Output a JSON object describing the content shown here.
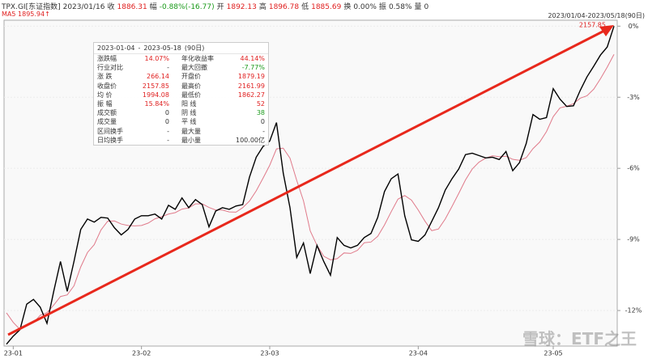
{
  "header": {
    "symbol": "TPX.GI[东证指数]",
    "date": "2023/01/16",
    "items": [
      {
        "label": "收",
        "value": "1886.31",
        "color": "red"
      },
      {
        "label": "幅",
        "value": "-0.88%(-16.77)",
        "color": "grn"
      },
      {
        "label": "开",
        "value": "1892.13",
        "color": "red"
      },
      {
        "label": "高",
        "value": "1896.78",
        "color": "red"
      },
      {
        "label": "低",
        "value": "1885.69",
        "color": "red"
      },
      {
        "label": "换",
        "value": "0.00%",
        "color": ""
      },
      {
        "label": "振",
        "value": "0.58%",
        "color": ""
      },
      {
        "label": "量",
        "value": "0",
        "color": ""
      }
    ]
  },
  "ma": {
    "name": "MA5",
    "value": "1895.94↑"
  },
  "range": "2023/01/04-2023/05/18(90日)",
  "panel": {
    "start": "2023-01-04",
    "sep": "-",
    "end": "2023-05-18",
    "days": "(90日)",
    "rows": [
      [
        "涨跌幅",
        "14.07%",
        "年化收益率",
        "44.14%"
      ],
      [
        "行业对比",
        "-",
        "最大回撤",
        "-7.77%"
      ],
      [
        "涨 跌",
        "266.14",
        "开盘价",
        "1879.19"
      ],
      [
        "收盘价",
        "2157.85",
        "最高价",
        "2161.99"
      ],
      [
        "均 价",
        "1994.08",
        "最低价",
        "1862.27"
      ],
      [
        "振 幅",
        "15.84%",
        "阳 线",
        "52"
      ],
      [
        "成交额",
        "0",
        "阴 线",
        "38"
      ],
      [
        "成交量",
        "0",
        "平 线",
        "0"
      ],
      [
        "区间换手",
        "-",
        "最大量",
        "-"
      ],
      [
        "日均换手",
        "-",
        "最小量",
        "100.00亿"
      ]
    ],
    "colors": [
      [
        "red",
        "red"
      ],
      [
        "",
        "grn"
      ],
      [
        "red",
        "red"
      ],
      [
        "red",
        "red"
      ],
      [
        "red",
        "red"
      ],
      [
        "red",
        "red"
      ],
      [
        "",
        "grn"
      ],
      [
        "",
        ""
      ],
      [
        "",
        ""
      ],
      [
        "",
        ""
      ]
    ]
  },
  "watermark": "雪球：ETF之王",
  "chart_data": {
    "type": "line",
    "annotation": "2157.85",
    "x": [
      0,
      1,
      2,
      3,
      4,
      5,
      6,
      7,
      8,
      9,
      10,
      11,
      12,
      13,
      14,
      15,
      16,
      17,
      18,
      19,
      20,
      21,
      22,
      23,
      24,
      25,
      26,
      27,
      28,
      29,
      30,
      31,
      32,
      33,
      34,
      35,
      36,
      37,
      38,
      39,
      40,
      41,
      42,
      43,
      44,
      45,
      46,
      47,
      48,
      49,
      50,
      51,
      52,
      53,
      54,
      55,
      56,
      57,
      58,
      59,
      60,
      61,
      62,
      63,
      64,
      65,
      66,
      67,
      68,
      69,
      70,
      71,
      72,
      73,
      74,
      75,
      76,
      77,
      78,
      79,
      80,
      81,
      82,
      83,
      84,
      85,
      86,
      87,
      88,
      89,
      90
    ],
    "series": [
      {
        "name": "TPX.GI",
        "color": "#000000",
        "values": [
          -13.42,
          -13.08,
          -12.81,
          -11.73,
          -11.53,
          -11.86,
          -12.54,
          -11.19,
          -9.93,
          -11.19,
          -9.93,
          -8.58,
          -8.14,
          -8.27,
          -8.07,
          -8.1,
          -8.51,
          -8.81,
          -8.58,
          -8.14,
          -8.0,
          -8.0,
          -7.93,
          -8.14,
          -7.56,
          -7.73,
          -7.25,
          -7.66,
          -7.32,
          -7.53,
          -8.47,
          -7.8,
          -7.66,
          -7.73,
          -7.59,
          -7.53,
          -6.37,
          -5.53,
          -5.08,
          -4.85,
          -4.07,
          -6.2,
          -7.66,
          -9.76,
          -9.15,
          -10.44,
          -9.25,
          -9.93,
          -10.51,
          -8.92,
          -9.25,
          -9.36,
          -9.25,
          -8.92,
          -8.75,
          -8.07,
          -6.98,
          -6.44,
          -6.24,
          -8.0,
          -9.02,
          -9.08,
          -8.81,
          -8.24,
          -7.66,
          -6.92,
          -6.44,
          -6.03,
          -5.42,
          -5.36,
          -5.46,
          -5.56,
          -5.53,
          -5.63,
          -5.29,
          -6.1,
          -5.76,
          -4.95,
          -3.73,
          -3.93,
          -3.86,
          -2.64,
          -3.08,
          -3.39,
          -3.36,
          -2.71,
          -2.14,
          -1.69,
          -1.22,
          -0.88,
          0
        ]
      },
      {
        "name": "MA5",
        "color": "#e07a8a",
        "values": [
          -12.1,
          -12.5,
          -12.8,
          -12.6,
          -12.51,
          -12.2,
          -12.09,
          -11.77,
          -11.41,
          -11.34,
          -10.96,
          -10.16,
          -9.55,
          -9.22,
          -8.6,
          -8.23,
          -8.22,
          -8.35,
          -8.41,
          -8.43,
          -8.41,
          -8.31,
          -8.13,
          -8.04,
          -7.93,
          -7.87,
          -7.72,
          -7.67,
          -7.5,
          -7.5,
          -7.65,
          -7.76,
          -7.76,
          -7.84,
          -7.85,
          -7.66,
          -7.38,
          -6.95,
          -6.42,
          -5.87,
          -5.18,
          -5.15,
          -5.57,
          -6.51,
          -7.37,
          -8.64,
          -9.25,
          -9.71,
          -9.86,
          -9.81,
          -9.57,
          -9.59,
          -9.46,
          -9.14,
          -9.11,
          -8.87,
          -8.39,
          -7.83,
          -7.3,
          -7.15,
          -7.34,
          -7.76,
          -8.23,
          -8.63,
          -8.56,
          -8.14,
          -7.61,
          -7.06,
          -6.49,
          -6.03,
          -5.74,
          -5.57,
          -5.47,
          -5.51,
          -5.49,
          -5.62,
          -5.66,
          -5.55,
          -5.17,
          -4.89,
          -4.45,
          -3.82,
          -3.45,
          -3.38,
          -3.27,
          -3.04,
          -2.94,
          -2.66,
          -2.22,
          -1.73,
          -1.19
        ]
      }
    ],
    "xlim": [
      0,
      90
    ],
    "xticks": [
      {
        "value": 1,
        "label": "23-01"
      },
      {
        "value": 20,
        "label": "23-02"
      },
      {
        "value": 39,
        "label": "23-03"
      },
      {
        "value": 61,
        "label": "23-04"
      },
      {
        "value": 81,
        "label": "23-05"
      }
    ],
    "ylim": [
      -13.5,
      0.25
    ],
    "yticks": [
      {
        "value": 0,
        "label": "0%"
      },
      {
        "value": -3,
        "label": "-3%"
      },
      {
        "value": -6,
        "label": "-6%"
      },
      {
        "value": -9,
        "label": "-9%"
      },
      {
        "value": -12,
        "label": "-12%"
      }
    ],
    "grid": true
  }
}
